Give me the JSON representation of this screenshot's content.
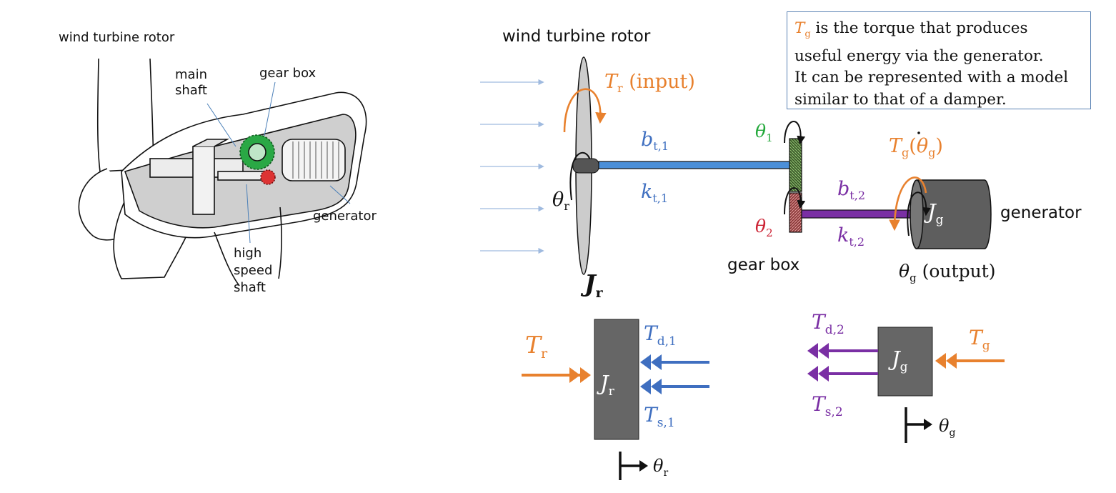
{
  "colors": {
    "orange": "#e8812e",
    "blue": "#3f6fc0",
    "green": "#22a83a",
    "red": "#cc2233",
    "purple": "#7a2fa4",
    "block_gray": "#666666",
    "note_border": "#5a82b4",
    "wind_arrows": "#9fbadf"
  },
  "sketch": {
    "rotor_label": "wind turbine rotor",
    "main_shaft_label": "main\nshaft",
    "gear_box_label": "gear box",
    "generator_label": "generator",
    "high_speed_shaft_label": "high\nspeed\nshaft"
  },
  "model": {
    "rotor_label": "wind turbine rotor",
    "Tr_input": {
      "sym": "T",
      "sub": "r",
      "suffix": " (input)"
    },
    "bt1": {
      "sym": "b",
      "sub": "t,1"
    },
    "kt1": {
      "sym": "k",
      "sub": "t,1"
    },
    "theta_r": {
      "sym": "θ",
      "sub": "r"
    },
    "Jr": {
      "sym": "J",
      "sub": "r"
    },
    "theta1": {
      "sym": "θ",
      "sub": "1"
    },
    "theta2": {
      "sym": "θ",
      "sub": "2"
    },
    "gear_box_label": "gear box",
    "bt2": {
      "sym": "b",
      "sub": "t,2"
    },
    "kt2": {
      "sym": "k",
      "sub": "t,2"
    },
    "Tg_of_thetadot": {
      "sym": "T",
      "sub": "g",
      "open": "(",
      "inner": "θ",
      "inner_sub": "g",
      "close": ")"
    },
    "Jg": {
      "sym": "J",
      "sub": "g"
    },
    "generator_label": "generator",
    "theta_g_output": {
      "sym": "θ",
      "sub": "g",
      "suffix": " (output)"
    }
  },
  "note": {
    "sym": "T",
    "sub": "g",
    "line1": " is the torque that produces",
    "line2": "useful energy via the generator.",
    "line3": "It can be represented with a model",
    "line4": "similar to that of a damper."
  },
  "fbd_rotor": {
    "Tr": {
      "sym": "T",
      "sub": "r"
    },
    "Td1": {
      "sym": "T",
      "sub": "d,1"
    },
    "Ts1": {
      "sym": "T",
      "sub": "s,1"
    },
    "Jr": {
      "sym": "J",
      "sub": "r"
    },
    "theta_r": {
      "sym": "θ",
      "sub": "r"
    }
  },
  "fbd_generator": {
    "Td2": {
      "sym": "T",
      "sub": "d,2"
    },
    "Ts2": {
      "sym": "T",
      "sub": "s,2"
    },
    "Tg": {
      "sym": "T",
      "sub": "g"
    },
    "Jg": {
      "sym": "J",
      "sub": "g"
    },
    "theta_g": {
      "sym": "θ",
      "sub": "g"
    }
  }
}
